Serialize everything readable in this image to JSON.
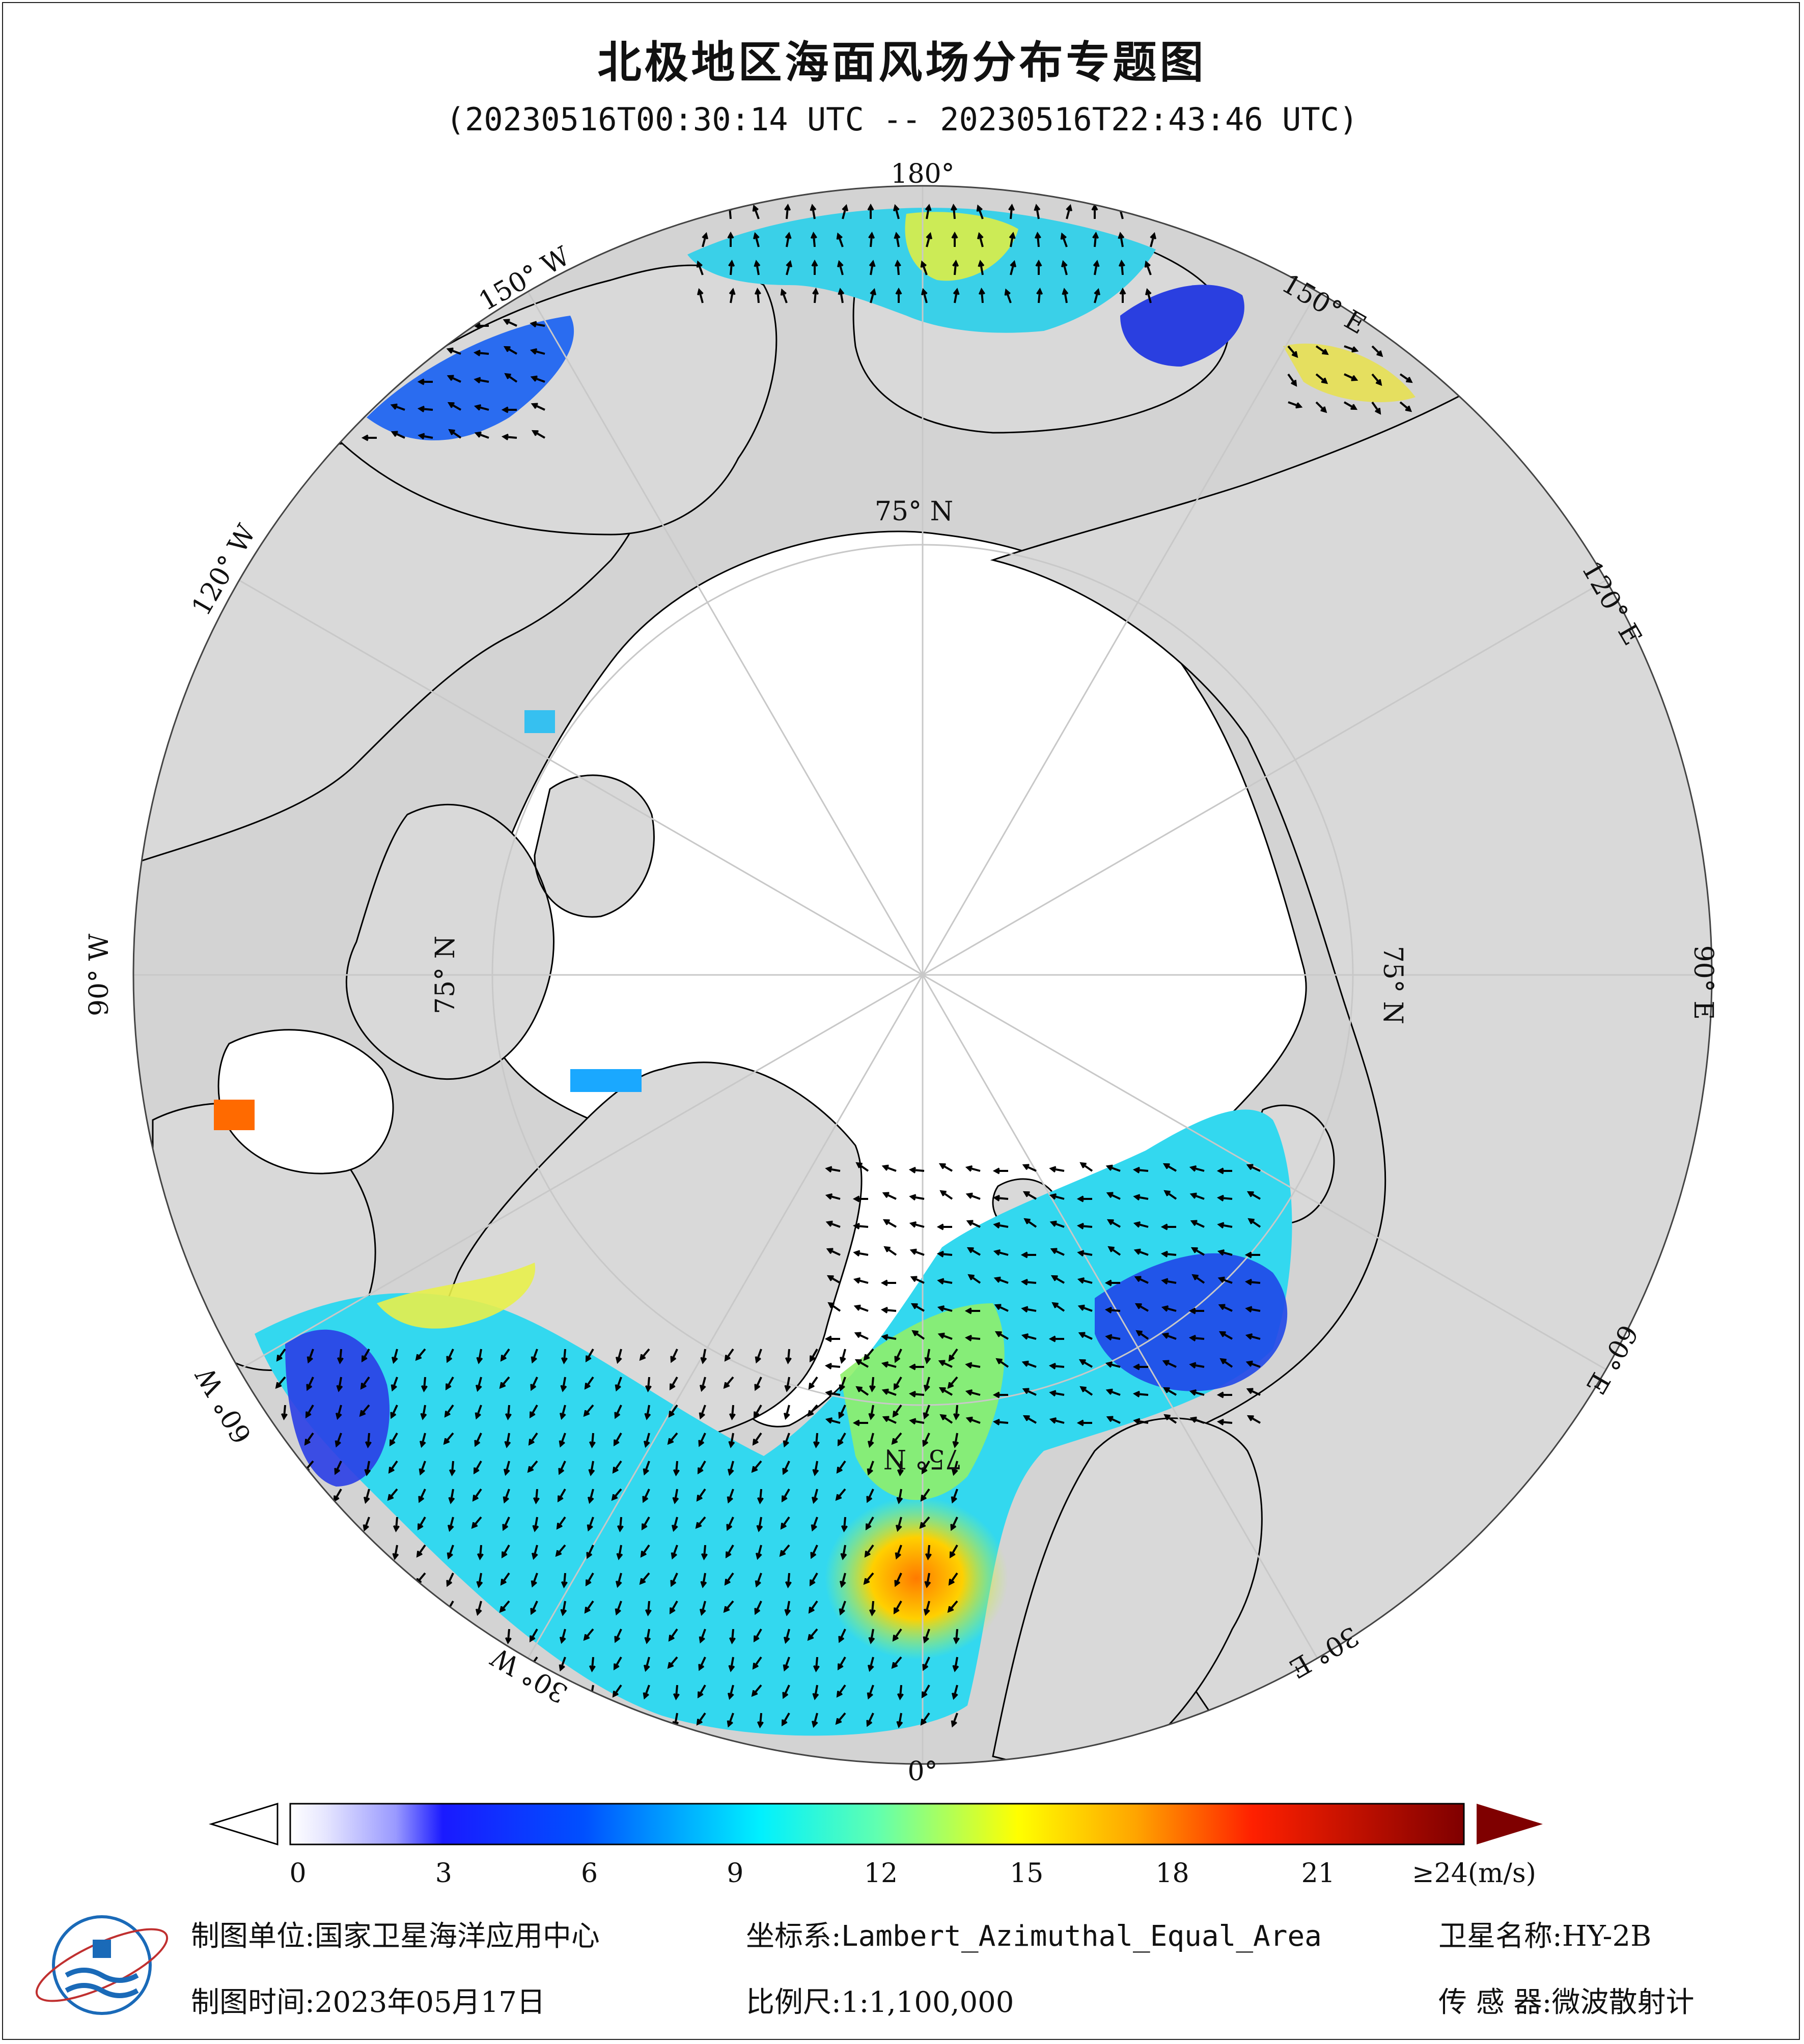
{
  "header": {
    "title": "北极地区海面风场分布专题图",
    "subtitle": "(20230516T00:30:14 UTC -- 20230516T22:43:46 UTC)"
  },
  "map": {
    "projection_center": "North Pole",
    "land_color": "#d9d9d9",
    "ice_color": "#ffffff",
    "ocean_nodata_color": "#d3d3d3",
    "longitude_labels": {
      "deg180": "180°",
      "deg150w": "150° W",
      "deg150e": "150° E",
      "deg120w": "120° W",
      "deg120e": "120° E",
      "deg90w": "90° W",
      "deg90e": "90° E",
      "deg60w": "60° W",
      "deg60e": "60° E",
      "deg30w": "30° W",
      "deg30e": "30° E",
      "deg0": "0°"
    },
    "latitude_labels": {
      "top": "75° N",
      "left": "75° N",
      "right": "75° N",
      "bottom": "75° N"
    }
  },
  "colorbar": {
    "unit_label": "≥24(m/s)",
    "ticks": [
      "0",
      "3",
      "6",
      "9",
      "12",
      "15",
      "18",
      "21"
    ],
    "stops": [
      "#ffffff",
      "#c8c8ff",
      "#0000ff",
      "#0a6cff",
      "#00e5ff",
      "#7fffa0",
      "#ffff00",
      "#ff8c00",
      "#ff0000",
      "#7f0000"
    ],
    "over_color": "#7f0000"
  },
  "footer": {
    "org_label": "制图单位:",
    "org_value": "国家卫星海洋应用中心",
    "coord_label": "坐标系:",
    "coord_value": "Lambert_Azimuthal_Equal_Area",
    "satellite_label": "卫星名称:",
    "satellite_value": "HY-2B",
    "date_label": "制图时间:",
    "date_value": "2023年05月17日",
    "scale_label": "比例尺:",
    "scale_value": "1:1,100,000",
    "sensor_label": "传 感 器:",
    "sensor_value": "微波散射计"
  }
}
